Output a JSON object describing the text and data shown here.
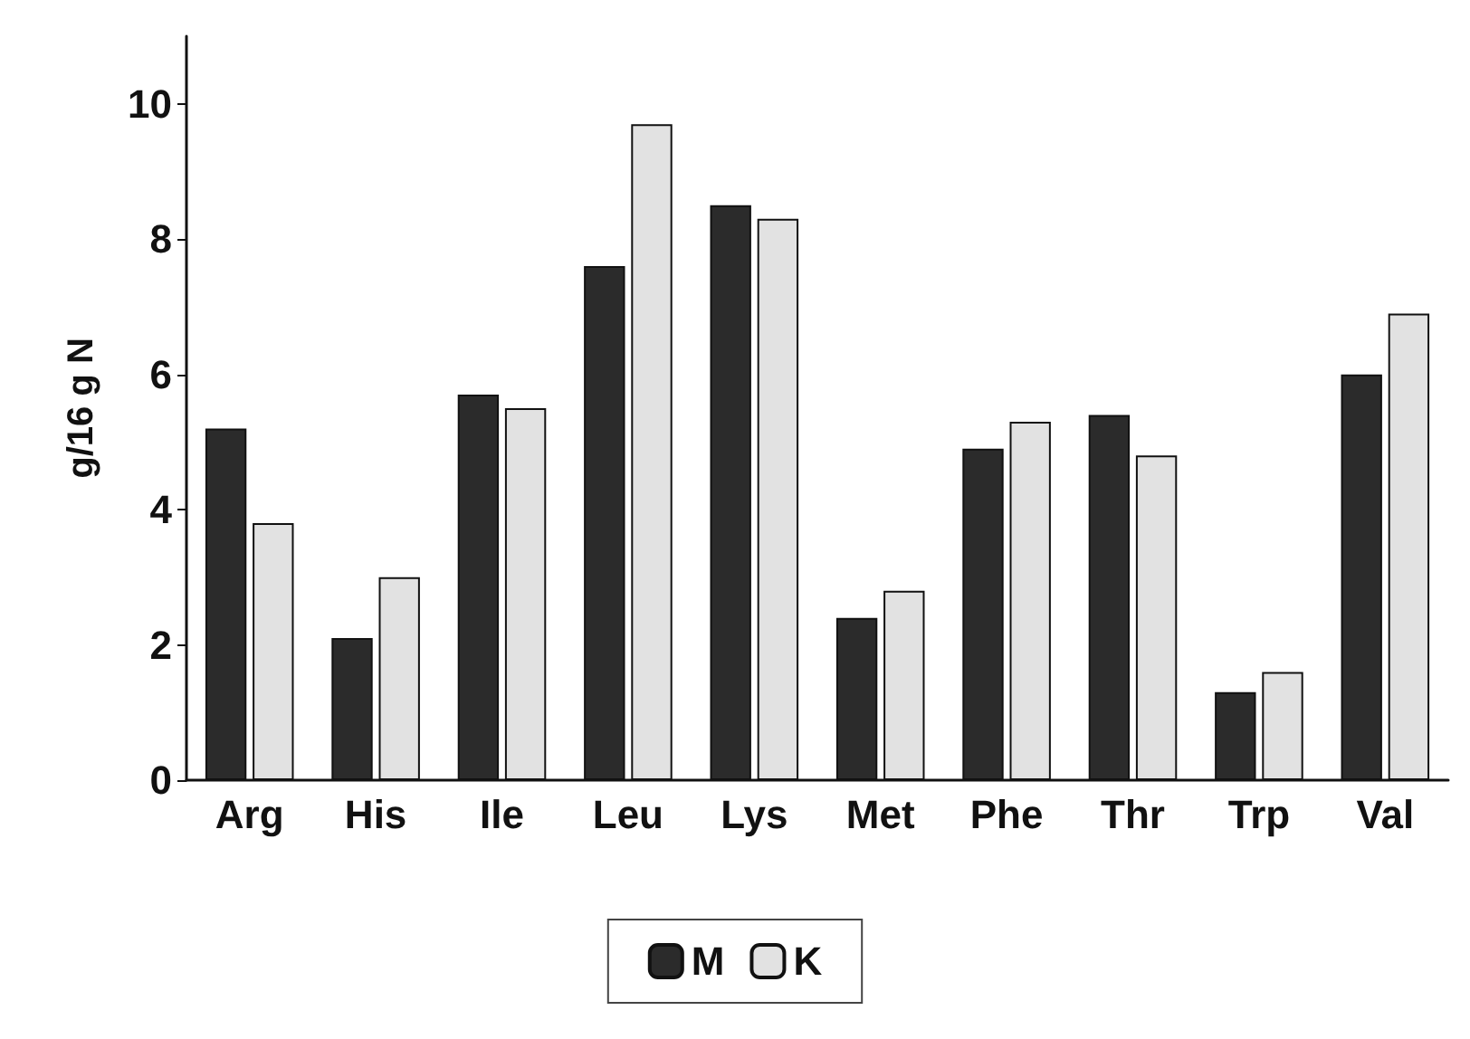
{
  "chart_data": {
    "type": "bar",
    "ylabel": "g/16 g N",
    "categories": [
      "Arg",
      "His",
      "Ile",
      "Leu",
      "Lys",
      "Met",
      "Phe",
      "Thr",
      "Trp",
      "Val"
    ],
    "series": [
      {
        "name": "M",
        "color": "#2b2b2b",
        "values": [
          5.2,
          2.1,
          5.7,
          7.6,
          8.5,
          2.4,
          4.9,
          5.4,
          1.3,
          6.0
        ]
      },
      {
        "name": "K",
        "color": "#e2e2e2",
        "values": [
          3.8,
          3.0,
          5.5,
          9.7,
          8.3,
          2.8,
          5.3,
          4.8,
          1.6,
          6.9
        ]
      }
    ],
    "ylim": [
      0,
      11
    ],
    "yticks": [
      0,
      2,
      4,
      6,
      8,
      10
    ],
    "grid": false,
    "legend": "bottom"
  }
}
